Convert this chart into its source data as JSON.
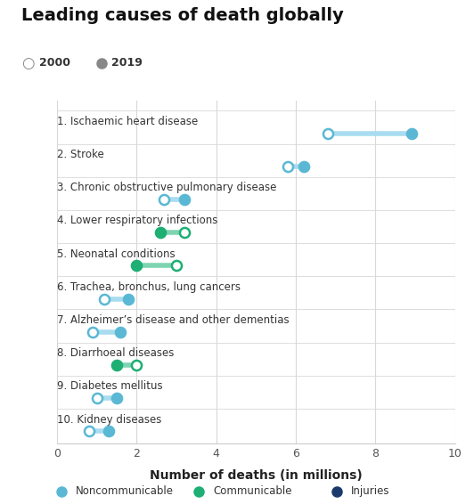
{
  "title": "Leading causes of death globally",
  "xlabel": "Number of deaths (in millions)",
  "categories": [
    "1. Ischaemic heart disease",
    "2. Stroke",
    "3. Chronic obstructive pulmonary disease",
    "4. Lower respiratory infections",
    "5. Neonatal conditions",
    "6. Trachea, bronchus, lung cancers",
    "7. Alzheimer’s disease and other dementias",
    "8. Diarrhoeal diseases",
    "9. Diabetes mellitus",
    "10. Kidney diseases"
  ],
  "val_2000": [
    6.8,
    5.8,
    2.7,
    3.2,
    3.0,
    1.2,
    0.9,
    2.0,
    1.0,
    0.8
  ],
  "val_2019": [
    8.9,
    6.2,
    3.2,
    2.6,
    2.0,
    1.8,
    1.6,
    1.5,
    1.5,
    1.3
  ],
  "category_type": [
    "noncommunicable",
    "noncommunicable",
    "noncommunicable",
    "communicable",
    "communicable",
    "noncommunicable",
    "noncommunicable",
    "communicable",
    "noncommunicable",
    "noncommunicable"
  ],
  "colors": {
    "noncommunicable": "#5BB8D4",
    "communicable": "#1DAF73",
    "injuries": "#1B3A6B"
  },
  "line_color_noncommunicable": "#A8DCEF",
  "line_color_communicable": "#7ED4B0",
  "xlim": [
    0,
    10
  ],
  "xticks": [
    0,
    2,
    4,
    6,
    8,
    10
  ],
  "background_color": "#ffffff",
  "grid_color": "#d8d8d8",
  "title_fontsize": 14,
  "label_fontsize": 8.5,
  "legend_labels": [
    "Noncommunicable",
    "Communicable",
    "Injuries"
  ],
  "legend_colors": [
    "#5BB8D4",
    "#1DAF73",
    "#1B3A6B"
  ]
}
